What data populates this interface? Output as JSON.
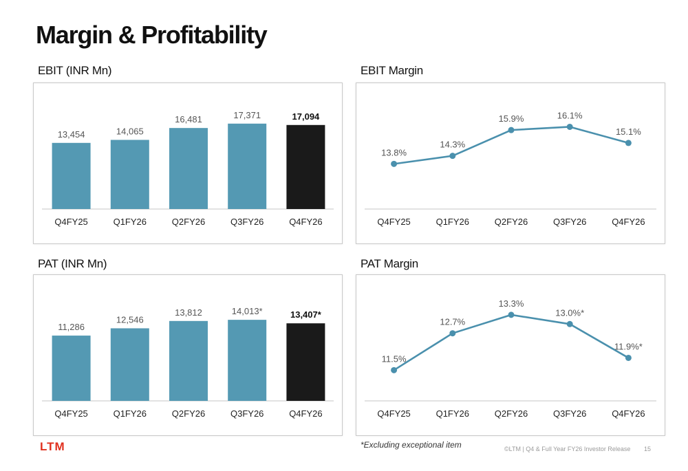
{
  "page": {
    "title": "Margin & Profitability",
    "footnote": "*Excluding exceptional item",
    "logo": "LTM",
    "footer": "©LTM | Q4 & Full Year FY26 Investor Release",
    "page_number": "15"
  },
  "colors": {
    "bar": "#5499b3",
    "bar_highlight": "#1a1a1a",
    "line": "#4a90ad",
    "axis": "#d0d0d0"
  },
  "chart_data": [
    {
      "id": "ebit",
      "type": "bar",
      "title": "EBIT (INR Mn)",
      "categories": [
        "Q4FY25",
        "Q1FY26",
        "Q2FY26",
        "Q3FY26",
        "Q4FY26"
      ],
      "values": [
        13454,
        14065,
        16481,
        17371,
        17094
      ],
      "labels": [
        "13,454",
        "14,065",
        "16,481",
        "17,371",
        "17,094"
      ],
      "highlight_last": true,
      "ylim": [
        0,
        20000
      ]
    },
    {
      "id": "ebit_margin",
      "type": "line",
      "title": "EBIT Margin",
      "categories": [
        "Q4FY25",
        "Q1FY26",
        "Q2FY26",
        "Q3FY26",
        "Q4FY26"
      ],
      "values": [
        13.8,
        14.3,
        15.9,
        16.1,
        15.1
      ],
      "labels": [
        "13.8%",
        "14.3%",
        "15.9%",
        "16.1%",
        "15.1%"
      ],
      "ylim": [
        11.0,
        17.1
      ]
    },
    {
      "id": "pat",
      "type": "bar",
      "title": "PAT (INR Mn)",
      "categories": [
        "Q4FY25",
        "Q1FY26",
        "Q2FY26",
        "Q3FY26",
        "Q4FY26"
      ],
      "values": [
        11286,
        12546,
        13812,
        14013,
        13407
      ],
      "labels": [
        "11,286",
        "12,546",
        "13,812",
        "14,013*",
        "13,407*"
      ],
      "highlight_last": true,
      "ylim": [
        0,
        17000
      ]
    },
    {
      "id": "pat_margin",
      "type": "line",
      "title": "PAT Margin",
      "categories": [
        "Q4FY25",
        "Q1FY26",
        "Q2FY26",
        "Q3FY26",
        "Q4FY26"
      ],
      "values": [
        11.5,
        12.7,
        13.3,
        13.0,
        11.9
      ],
      "labels": [
        "11.5%",
        "12.7%",
        "13.3%",
        "13.0%*",
        "11.9%*"
      ],
      "ylim": [
        10.5,
        13.7
      ]
    }
  ]
}
